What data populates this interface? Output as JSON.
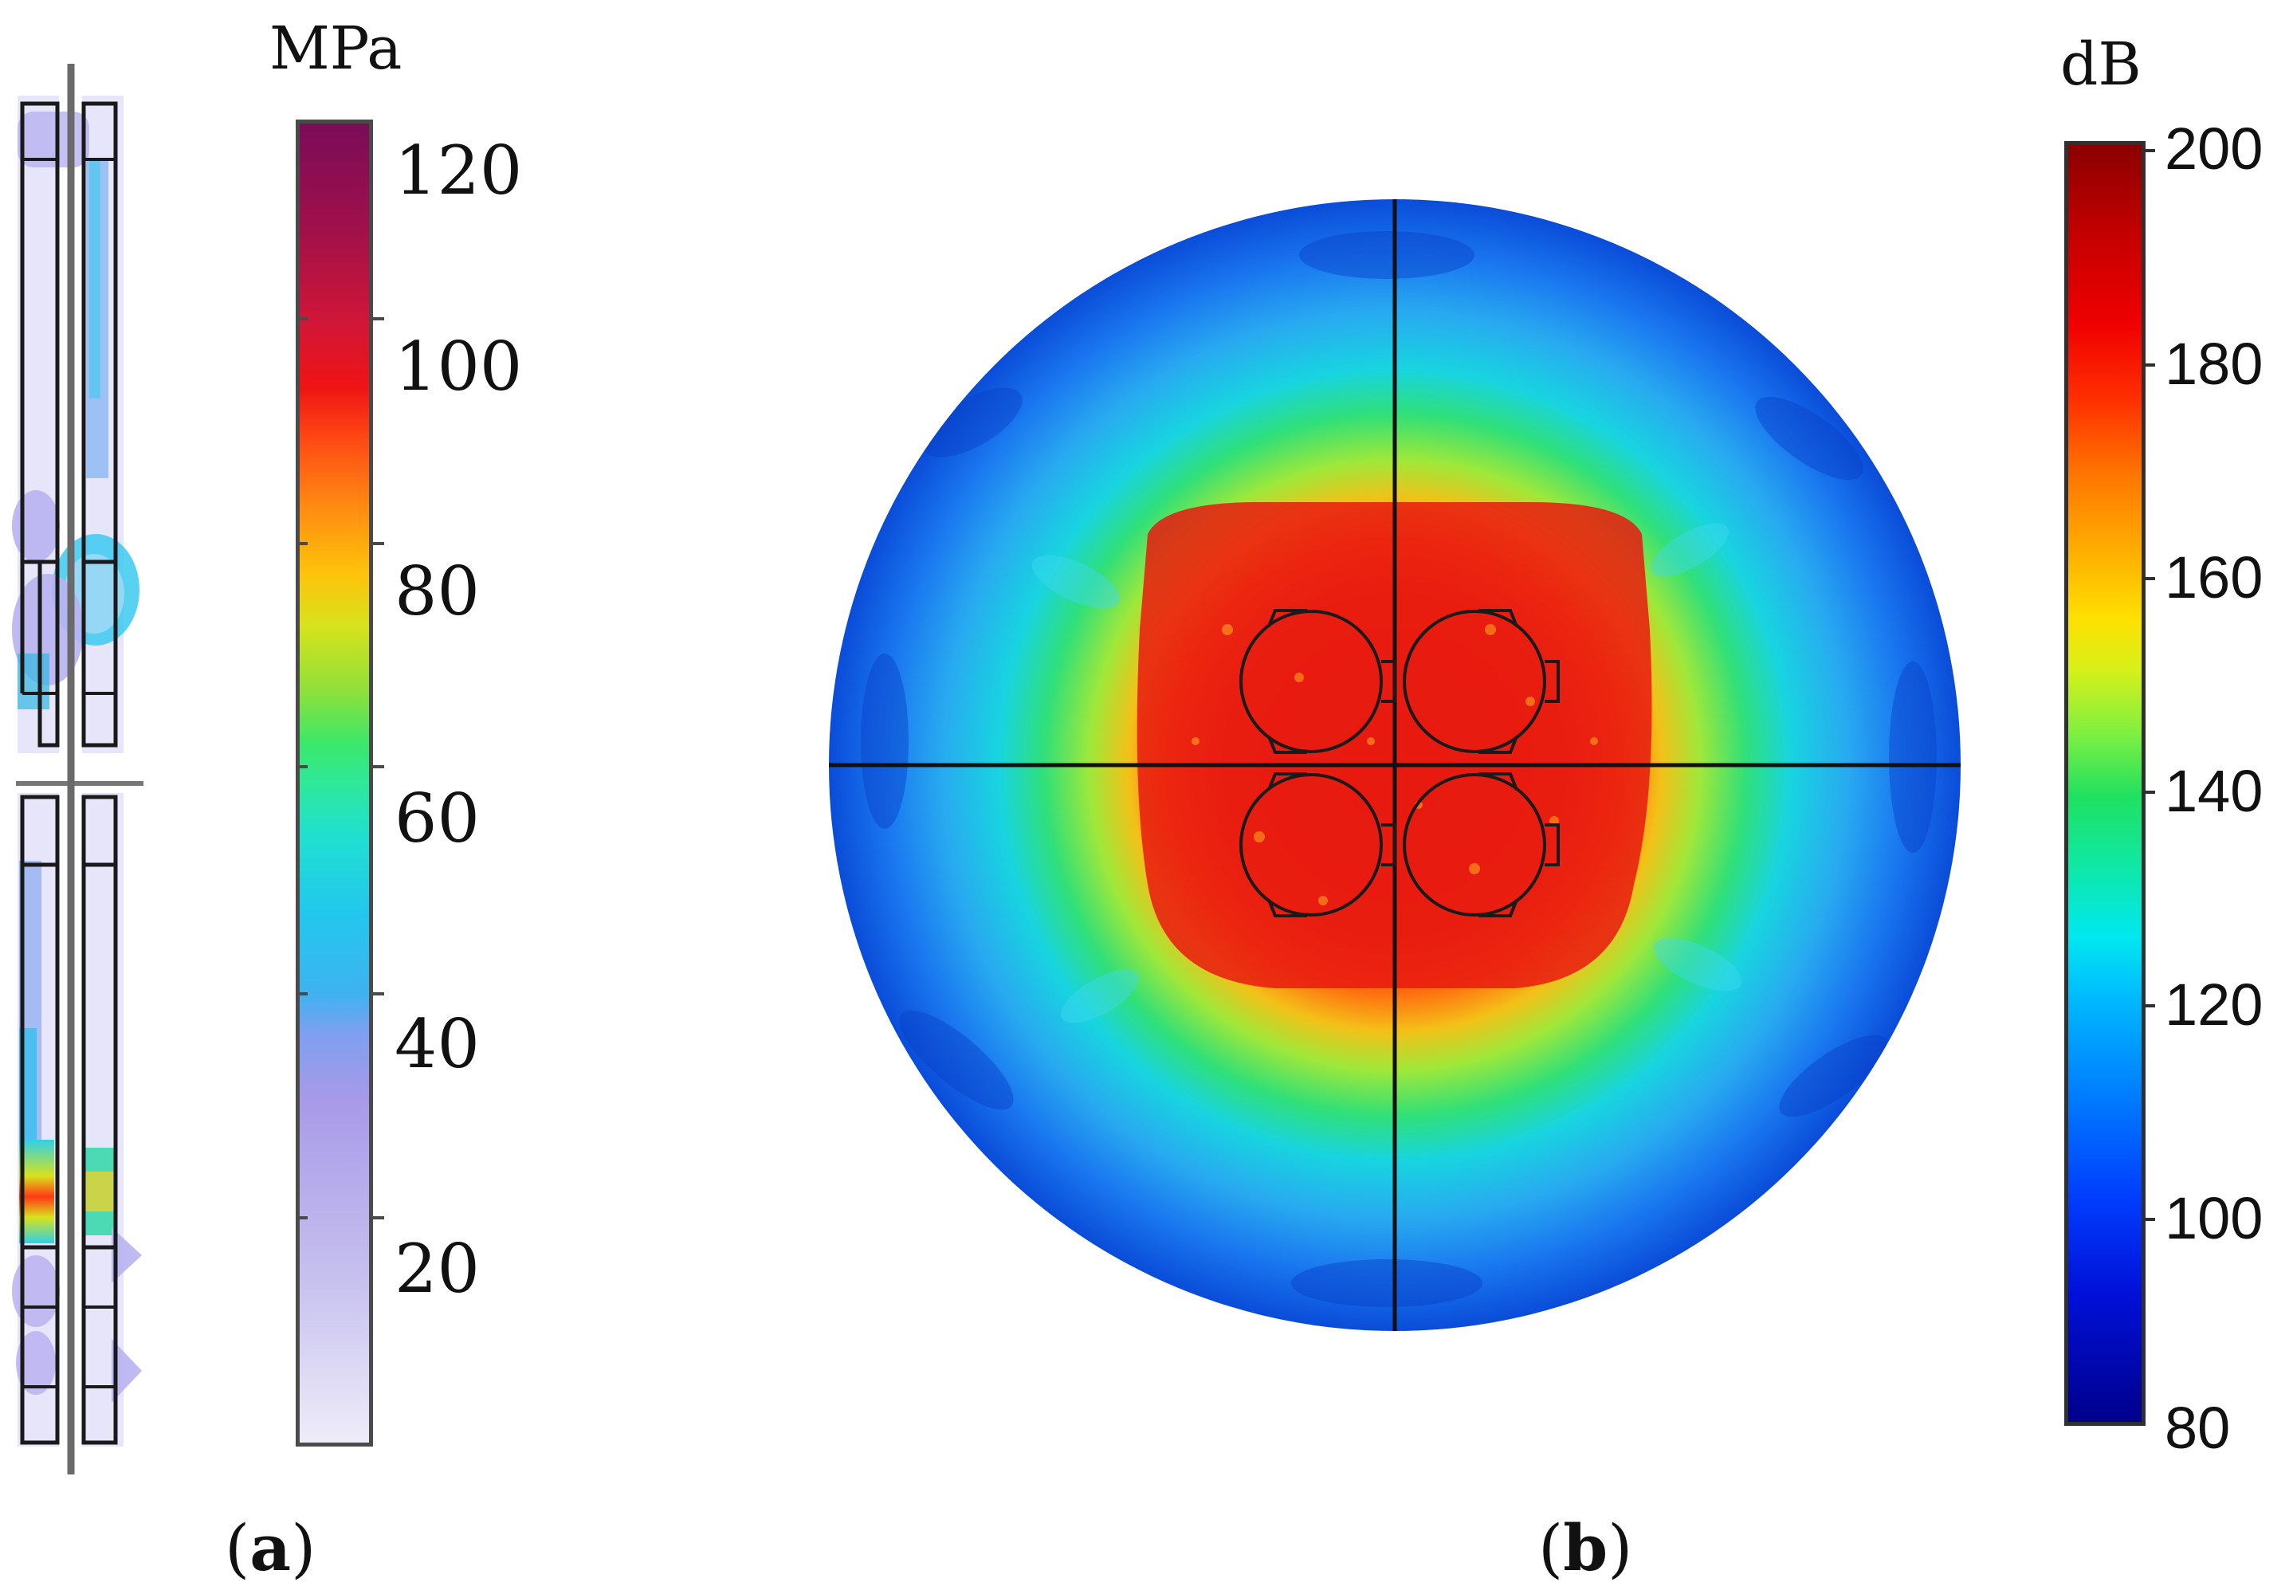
{
  "panel_a": {
    "unit": "MPa",
    "ticks": [
      "120",
      "100",
      "80",
      "60",
      "40",
      "20"
    ],
    "caption_open": "(",
    "caption_letter": "a",
    "caption_close": ")"
  },
  "panel_b": {
    "unit": "dB",
    "ticks": [
      "200",
      "180",
      "160",
      "140",
      "120",
      "100",
      "80"
    ],
    "caption_open": "(",
    "caption_letter": "b",
    "caption_close": ")"
  },
  "colors": {
    "hot": "#e81c10",
    "cold": "#0a5cf0",
    "outline": "#1a1a1a"
  }
}
